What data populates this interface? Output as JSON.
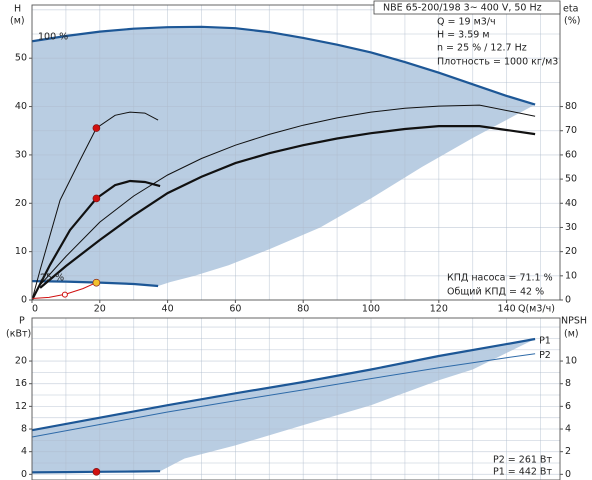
{
  "chart_data": [
    {
      "type": "line",
      "title": "NBE 65-200/198    3~ 400 V, 50 Hz",
      "ylabel": "H",
      "yunit": "(м)",
      "y2label": "eta",
      "y2unit": "(%)",
      "xlabel": "Q(м3/ч)",
      "info": [
        "Q = 19 м3/ч",
        "H = 3.59 м",
        "n = 25 % / 12.7 Hz",
        "Плотность = 1000 кг/м3"
      ],
      "efficiency_notes": [
        "КПД насоса = 71.1 %",
        "Общий КПД = 42 %"
      ],
      "curve_labels": [
        "100 %",
        "25 %"
      ],
      "xlim": [
        0,
        155.75
      ],
      "ylim": [
        0,
        61
      ],
      "y2lim": [
        0,
        122
      ],
      "xticks": [
        0,
        20,
        40,
        60,
        80,
        100,
        120,
        140
      ],
      "yticks": [
        0,
        10,
        20,
        30,
        40,
        50
      ],
      "y2ticks": [
        0,
        10,
        20,
        30,
        40,
        50,
        60,
        70,
        80
      ],
      "xgrid": [
        0,
        10,
        20,
        30,
        40,
        50,
        60,
        70,
        80,
        90,
        100,
        110,
        120,
        130,
        140,
        150
      ],
      "ygrid": [
        0,
        5,
        10,
        15,
        20,
        25,
        30,
        35,
        40,
        45,
        50,
        55,
        60
      ],
      "series": [
        {
          "style": "area",
          "color": "#b9cde2",
          "x": [
            0,
            10,
            20,
            30,
            40,
            50,
            60,
            70,
            80,
            90,
            100,
            110,
            120,
            130,
            140,
            148.4,
            130,
            115,
            100,
            85,
            70,
            58,
            48,
            40.7,
            37.2,
            30,
            20,
            10,
            0
          ],
          "values": [
            53.5,
            54.6,
            55.5,
            56.1,
            56.4,
            56.5,
            56.2,
            55.4,
            54.2,
            52.8,
            51.2,
            49.2,
            47,
            44.6,
            42.2,
            40.4,
            33.5,
            27.5,
            21,
            15,
            10.5,
            7.2,
            5,
            3.7,
            2.9,
            3.3,
            3.6,
            3.8,
            3.9
          ]
        },
        {
          "style": "thick",
          "color": "#1d5796",
          "x": [
            0,
            10,
            20,
            30,
            40,
            50,
            60,
            70,
            80,
            90,
            100,
            110,
            120,
            130,
            140,
            148.4
          ],
          "values": [
            53.5,
            54.6,
            55.5,
            56.1,
            56.4,
            56.5,
            56.2,
            55.4,
            54.2,
            52.8,
            51.2,
            49.2,
            47,
            44.6,
            42.2,
            40.4
          ]
        },
        {
          "style": "thick",
          "color": "#1d5796",
          "x": [
            0,
            10,
            20,
            30,
            37.2
          ],
          "values": [
            3.9,
            3.8,
            3.6,
            3.3,
            2.9
          ]
        },
        {
          "style": "thin",
          "color": "#111111",
          "axis": "y2",
          "x": [
            2.4,
            10,
            20,
            30,
            40,
            50,
            60,
            70,
            80,
            90,
            100,
            110,
            120,
            132,
            148.4
          ],
          "values": [
            6.2,
            18,
            32.2,
            43,
            51.7,
            58.5,
            64,
            68.5,
            72.3,
            75.3,
            77.7,
            79.3,
            80.2,
            80.6,
            76
          ]
        },
        {
          "style": "thick",
          "color": "#111111",
          "axis": "y2",
          "x": [
            2.4,
            10,
            20,
            30,
            40,
            50,
            60,
            70,
            80,
            90,
            100,
            110,
            120,
            132,
            148.4
          ],
          "values": [
            5,
            14,
            24.8,
            35,
            44.2,
            51,
            56.6,
            60.7,
            64,
            66.8,
            69,
            70.7,
            71.9,
            71.9,
            68.6
          ]
        },
        {
          "style": "thin",
          "color": "#111111",
          "axis": "y2",
          "x": [
            0,
            2.4,
            8.3,
            14.2,
            19,
            24.5,
            28.9,
            33.3,
            37.2
          ],
          "values": [
            0,
            12.4,
            41.3,
            57.9,
            71.1,
            76.4,
            77.7,
            77.3,
            74.4
          ]
        },
        {
          "style": "thick",
          "color": "#111111",
          "axis": "y2",
          "x": [
            0,
            5.3,
            11.2,
            19,
            24.5,
            28.9,
            33.3,
            37.8
          ],
          "values": [
            0,
            14.5,
            28.9,
            42,
            47.5,
            49.2,
            48.8,
            47.1
          ]
        },
        {
          "style": "thin",
          "color": "#d01010",
          "x": [
            0,
            5,
            10,
            15,
            19
          ],
          "values": [
            0.3,
            0.53,
            1.21,
            2.35,
            3.59
          ]
        }
      ],
      "markers": [
        {
          "x": 19,
          "y": 3.59,
          "color": "#f2c12e"
        },
        {
          "x": 19,
          "y": 71.1,
          "axis": "y2",
          "color": "#d01010"
        },
        {
          "x": 19,
          "y": 42,
          "axis": "y2",
          "color": "#d01010"
        },
        {
          "x": 9.7,
          "y": 1.1,
          "color": "#d01010",
          "hollow": true
        }
      ]
    },
    {
      "type": "line",
      "ylabel": "P",
      "yunit": "(кВт)",
      "y2label": "NPSH",
      "y2unit": "(м)",
      "power_notes": [
        "P2 = 261 Вт",
        "P1 = 442 Вт"
      ],
      "xlim": [
        0,
        155.75
      ],
      "ylim": [
        -1,
        27.6
      ],
      "y2lim": [
        -0.5,
        13.8
      ],
      "yticks": [
        0,
        4,
        8,
        12,
        16,
        20
      ],
      "y2ticks": [
        0,
        2,
        4,
        6,
        8,
        10
      ],
      "xgrid": [
        0,
        10,
        20,
        30,
        40,
        50,
        60,
        70,
        80,
        90,
        100,
        110,
        120,
        130,
        140,
        150
      ],
      "ygrid": [
        0,
        2,
        4,
        6,
        8,
        10,
        12,
        14,
        16,
        18,
        20,
        22,
        24,
        26
      ],
      "series": [
        {
          "style": "area",
          "color": "#b9cde2",
          "x": [
            0,
            20,
            40,
            60,
            80,
            100,
            120,
            140,
            148.4,
            130,
            120,
            100,
            80,
            60,
            45,
            37.8,
            30,
            19,
            10,
            0
          ],
          "values": [
            7.8,
            10,
            12.2,
            14.3,
            16.3,
            18.5,
            20.9,
            23,
            23.9,
            18.5,
            16.6,
            12.2,
            8.7,
            5.1,
            2.8,
            0.55,
            0.5,
            0.442,
            0.4,
            0.35
          ]
        },
        {
          "name": "P1",
          "style": "thick",
          "color": "#1d5796",
          "x": [
            0,
            20,
            40,
            60,
            80,
            100,
            120,
            140,
            148.4
          ],
          "values": [
            7.8,
            10,
            12.2,
            14.3,
            16.3,
            18.5,
            20.9,
            23,
            23.9
          ]
        },
        {
          "name": "P2",
          "style": "thin",
          "color": "#2e6aa8",
          "x": [
            0,
            20,
            40,
            60,
            80,
            100,
            120,
            140,
            148.4
          ],
          "values": [
            6.6,
            8.8,
            11,
            13,
            14.9,
            16.9,
            18.8,
            20.6,
            21.3
          ]
        },
        {
          "style": "thick",
          "color": "#1d5796",
          "x": [
            0,
            10,
            19,
            30,
            37.8
          ],
          "values": [
            0.35,
            0.4,
            0.442,
            0.5,
            0.55
          ]
        }
      ],
      "markers": [
        {
          "x": 19,
          "y": 0.442,
          "color": "#d01010"
        }
      ]
    }
  ]
}
